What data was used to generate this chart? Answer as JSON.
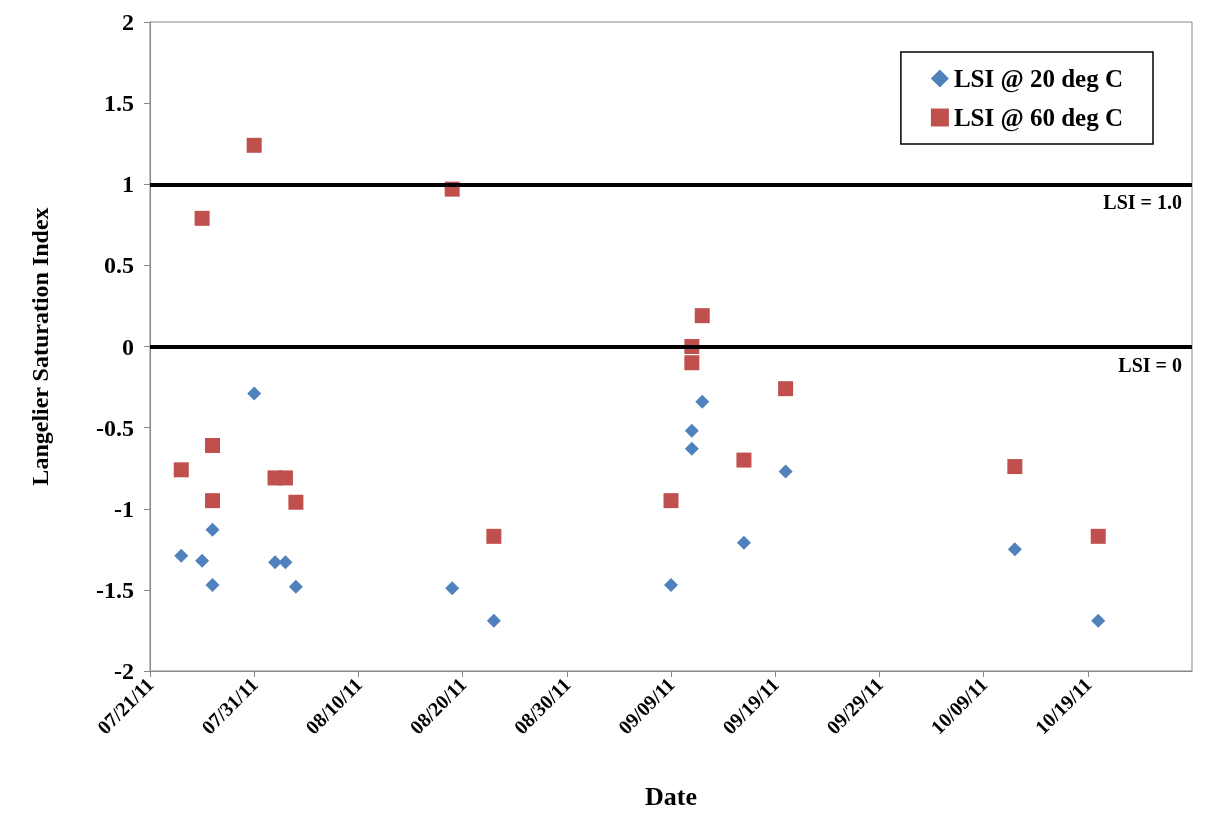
{
  "chart_data": {
    "type": "scatter",
    "xlabel": "Date",
    "ylabel": "Langelier Saturation Index",
    "x": [
      "--07-24",
      "--07-26",
      "--07-27",
      "--07-27",
      "--07-31",
      "--08-02",
      "--08-03",
      "--08-04",
      "--08-19",
      "--08-23",
      "--09-09",
      "--09-11",
      "--09-11",
      "--09-12",
      "--09-16",
      "--09-20",
      "--10-12",
      "--10-20"
    ],
    "series": [
      {
        "name": "LSI @ 20 deg C",
        "color": "#4f81bd",
        "marker": "diamond",
        "values": [
          -1.29,
          -1.32,
          -1.47,
          -1.13,
          -0.29,
          -1.33,
          -1.33,
          -1.48,
          -1.49,
          -1.69,
          -1.47,
          -0.52,
          -0.63,
          -0.34,
          -1.21,
          -0.77,
          -1.25,
          -1.69
        ]
      },
      {
        "name": "LSI @ 60 deg C",
        "color": "#c0504d",
        "marker": "square",
        "values": [
          -0.76,
          0.79,
          -0.61,
          -0.95,
          1.24,
          -0.81,
          -0.81,
          -0.96,
          0.97,
          -1.17,
          -0.95,
          0.0,
          -0.1,
          0.19,
          -0.7,
          -0.26,
          -0.74,
          -1.17
        ]
      }
    ],
    "xlim": [
      "--07-21",
      "--10-29"
    ],
    "xticks": [
      {
        "value": "--07-21",
        "label": "07/21/11"
      },
      {
        "value": "--07-31",
        "label": "07/31/11"
      },
      {
        "value": "--08-10",
        "label": "08/10/11"
      },
      {
        "value": "--08-20",
        "label": "08/20/11"
      },
      {
        "value": "--08-30",
        "label": "08/30/11"
      },
      {
        "value": "--09-09",
        "label": "09/09/11"
      },
      {
        "value": "--09-19",
        "label": "09/19/11"
      },
      {
        "value": "--09-29",
        "label": "09/29/11"
      },
      {
        "value": "--10-09",
        "label": "10/09/11"
      },
      {
        "value": "--10-19",
        "label": "10/19/11"
      }
    ],
    "ylim": [
      -2,
      2
    ],
    "yticks": [
      -2,
      -1.5,
      -1,
      -0.5,
      0,
      0.5,
      1,
      1.5,
      2
    ],
    "ref_lines": [
      {
        "axis": "y",
        "value": 1,
        "label": "LSI = 1.0",
        "color": "#000000"
      },
      {
        "axis": "y",
        "value": 0,
        "label": "LSI = 0",
        "color": "#000000"
      }
    ],
    "grid": false,
    "legend": "top right"
  }
}
